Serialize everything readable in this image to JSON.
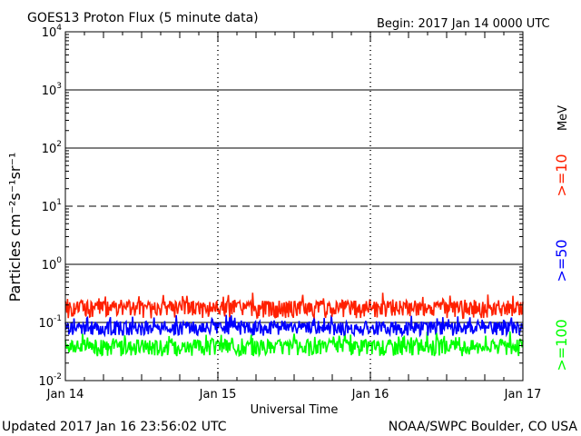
{
  "chart_data": {
    "type": "line",
    "title": "GOES13 Proton Flux (5 minute data)",
    "begin_label": "Begin: 2017 Jan 14 0000 UTC",
    "xlabel": "Universal Time",
    "ylabel": "Particles cm⁻²s⁻¹sr⁻¹",
    "unit_label": "MeV",
    "x_tick_labels": [
      "Jan 14",
      "Jan 15",
      "Jan 16",
      "Jan 17"
    ],
    "x_range_days": [
      0,
      3
    ],
    "y_scale": "log",
    "ylim": [
      0.01,
      10000
    ],
    "y_tick_labels": [
      {
        "base": "10",
        "exp": "-2"
      },
      {
        "base": "10",
        "exp": "-1"
      },
      {
        "base": "10",
        "exp": "0"
      },
      {
        "base": "10",
        "exp": "1"
      },
      {
        "base": "10",
        "exp": "2"
      },
      {
        "base": "10",
        "exp": "3"
      },
      {
        "base": "10",
        "exp": "4"
      }
    ],
    "reference_lines": [
      {
        "value": 10,
        "style": "dashed"
      },
      {
        "value": 1,
        "style": "solid"
      },
      {
        "value": 100,
        "style": "solid"
      },
      {
        "value": 1000,
        "style": "solid"
      },
      {
        "value": 0.1,
        "style": "solid"
      }
    ],
    "series": [
      {
        "name": ">=10",
        "color": "#ff2000",
        "baseline": 0.16,
        "spread": 0.12
      },
      {
        "name": ">=50",
        "color": "#0000ff",
        "baseline": 0.075,
        "spread": 0.045
      },
      {
        "name": ">=100",
        "color": "#00ff00",
        "baseline": 0.035,
        "spread": 0.025
      }
    ]
  },
  "footer": {
    "updated": "Updated 2017 Jan 16 23:56:02 UTC",
    "credit": "NOAA/SWPC Boulder, CO USA"
  }
}
